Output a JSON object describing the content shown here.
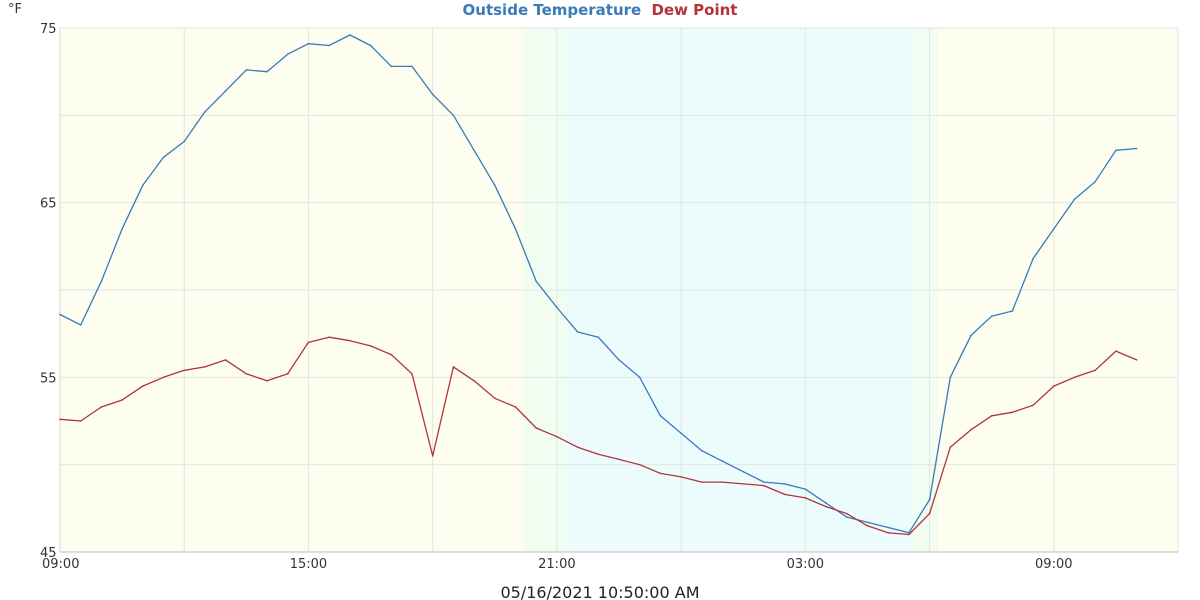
{
  "chart_data": {
    "type": "line",
    "title_parts": [
      "Outside Temperature",
      "Dew Point"
    ],
    "ylabel": "°F",
    "xlabel": "05/16/2021 10:50:00 AM",
    "ylim": [
      45,
      75
    ],
    "y_ticks": [
      45,
      55,
      65,
      75
    ],
    "x_start": "09:00",
    "x_range_hours": [
      0,
      27
    ],
    "x_ticks": [
      {
        "label": "09:00",
        "hour": 0
      },
      {
        "label": "15:00",
        "hour": 6
      },
      {
        "label": "21:00",
        "hour": 12
      },
      {
        "label": "03:00",
        "hour": 18
      },
      {
        "label": "09:00",
        "hour": 24
      }
    ],
    "grid": true,
    "legend": "top-center",
    "series": [
      {
        "name": "Outside Temperature",
        "color": "#3a7ab8",
        "x": [
          0,
          0.5,
          1,
          1.5,
          2,
          2.5,
          3,
          3.5,
          4,
          4.5,
          5,
          5.5,
          6,
          6.5,
          7,
          7.5,
          8,
          8.5,
          9,
          9.5,
          10,
          10.5,
          11,
          11.5,
          12,
          12.5,
          13,
          13.5,
          14,
          14.5,
          15,
          15.5,
          16,
          16.5,
          17,
          17.5,
          18,
          18.5,
          19,
          19.5,
          20,
          20.5,
          21,
          21.5,
          22,
          22.5,
          23,
          23.5,
          24,
          24.5,
          25,
          25.5,
          26
        ],
        "values": [
          58.6,
          58.0,
          60.5,
          63.5,
          66.0,
          67.6,
          68.5,
          70.2,
          71.4,
          72.6,
          72.5,
          73.5,
          74.1,
          74.0,
          74.6,
          74.0,
          72.8,
          72.8,
          71.2,
          70.0,
          68.0,
          66.0,
          63.5,
          60.5,
          59.0,
          57.6,
          57.3,
          56.0,
          55.0,
          52.8,
          51.8,
          50.8,
          50.2,
          49.6,
          49.0,
          48.9,
          48.6,
          47.8,
          47.0,
          46.7,
          46.4,
          46.1,
          48.0,
          55.0,
          57.4,
          58.5,
          58.8,
          61.8,
          63.5,
          65.2,
          66.2,
          68.0,
          68.1
        ]
      },
      {
        "name": "Dew Point",
        "color": "#b0343c",
        "x": [
          0,
          0.5,
          1,
          1.5,
          2,
          2.5,
          3,
          3.5,
          4,
          4.5,
          5,
          5.5,
          6,
          6.5,
          7,
          7.5,
          8,
          8.5,
          9,
          9.5,
          10,
          10.5,
          11,
          11.5,
          12,
          12.5,
          13,
          13.5,
          14,
          14.5,
          15,
          15.5,
          16,
          16.5,
          17,
          17.5,
          18,
          18.5,
          19,
          19.5,
          20,
          20.5,
          21,
          21.5,
          22,
          22.5,
          23,
          23.5,
          24,
          24.5,
          25,
          25.5,
          26
        ],
        "values": [
          52.6,
          52.5,
          53.3,
          53.7,
          54.5,
          55.0,
          55.4,
          55.6,
          56.0,
          55.2,
          54.8,
          55.2,
          57.0,
          57.3,
          57.1,
          56.8,
          56.3,
          55.2,
          50.5,
          55.6,
          54.8,
          53.8,
          53.3,
          52.1,
          51.6,
          51.0,
          50.6,
          50.3,
          50.0,
          49.5,
          49.3,
          49.0,
          49.0,
          48.9,
          48.8,
          48.3,
          48.1,
          47.6,
          47.2,
          46.5,
          46.1,
          46.0,
          47.2,
          51.0,
          52.0,
          52.8,
          53.0,
          53.4,
          54.5,
          55.0,
          55.4,
          56.5,
          56.0
        ]
      }
    ],
    "background_bands": [
      {
        "from": 0,
        "to": 11.2,
        "color": "#fdfdf0"
      },
      {
        "from": 11.2,
        "to": 12.2,
        "color": "#f0fdf0"
      },
      {
        "from": 12.2,
        "to": 20.6,
        "color": "#ecfcfd"
      },
      {
        "from": 20.6,
        "to": 21.2,
        "color": "#f0fdf0"
      },
      {
        "from": 21.2,
        "to": 27,
        "color": "#fdfdf0"
      }
    ]
  }
}
